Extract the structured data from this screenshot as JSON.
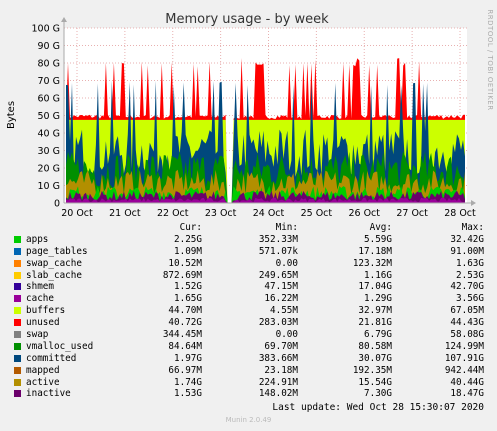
{
  "chart_data": {
    "type": "area",
    "title": "Memory usage - by week",
    "ylabel": "Bytes",
    "ylim": [
      0,
      100
    ],
    "y_unit": "G",
    "yticks": [
      "0",
      "10 G",
      "20 G",
      "30 G",
      "40 G",
      "50 G",
      "60 G",
      "70 G",
      "80 G",
      "90 G",
      "100 G"
    ],
    "xticks": [
      "20 Oct",
      "21 Oct",
      "22 Oct",
      "23 Oct",
      "24 Oct",
      "25 Oct",
      "26 Oct",
      "27 Oct",
      "28 Oct"
    ],
    "grid": true,
    "side_label": "RRDTOOL / TOBI OETIKER",
    "series": [
      {
        "name": "apps",
        "color": "#00cc00",
        "cur": "2.25G",
        "min": "352.33M",
        "avg": "5.59G",
        "max": "32.42G"
      },
      {
        "name": "page_tables",
        "color": "#0066b3",
        "cur": "1.09M",
        "min": "571.07k",
        "avg": "17.18M",
        "max": "91.00M"
      },
      {
        "name": "swap_cache",
        "color": "#ff8000",
        "cur": "10.52M",
        "min": "0.00",
        "avg": "123.32M",
        "max": "1.63G"
      },
      {
        "name": "slab_cache",
        "color": "#ffcc00",
        "cur": "872.69M",
        "min": "249.65M",
        "avg": "1.16G",
        "max": "2.53G"
      },
      {
        "name": "shmem",
        "color": "#330099",
        "cur": "1.52G",
        "min": "47.15M",
        "avg": "17.04G",
        "max": "42.70G"
      },
      {
        "name": "cache",
        "color": "#990099",
        "cur": "1.65G",
        "min": "16.22M",
        "avg": "1.29G",
        "max": "3.56G"
      },
      {
        "name": "buffers",
        "color": "#ccff00",
        "cur": "44.70M",
        "min": "4.55M",
        "avg": "32.97M",
        "max": "67.05M"
      },
      {
        "name": "unused",
        "color": "#ff0000",
        "cur": "40.72G",
        "min": "283.03M",
        "avg": "21.81G",
        "max": "44.43G"
      },
      {
        "name": "swap",
        "color": "#808080",
        "cur": "344.45M",
        "min": "0.00",
        "avg": "6.79G",
        "max": "58.08G"
      },
      {
        "name": "vmalloc_used",
        "color": "#008f00",
        "cur": "84.64M",
        "min": "69.70M",
        "avg": "80.58M",
        "max": "124.99M"
      },
      {
        "name": "committed",
        "color": "#00487d",
        "cur": "1.97G",
        "min": "383.66M",
        "avg": "30.07G",
        "max": "107.91G"
      },
      {
        "name": "mapped",
        "color": "#b35a00",
        "cur": "66.97M",
        "min": "23.18M",
        "avg": "192.35M",
        "max": "942.44M"
      },
      {
        "name": "active",
        "color": "#b38f00",
        "cur": "1.74G",
        "min": "224.91M",
        "avg": "15.54G",
        "max": "40.44G"
      },
      {
        "name": "inactive",
        "color": "#6b006b",
        "cur": "1.53G",
        "min": "148.02M",
        "avg": "7.30G",
        "max": "18.47G"
      }
    ]
  },
  "legend_headers": {
    "cur": "Cur:",
    "min": "Min:",
    "avg": "Avg:",
    "max": "Max:"
  },
  "footer": "Last update: Wed Oct 28 15:30:07 2020",
  "munin_version": "Munin 2.0.49"
}
